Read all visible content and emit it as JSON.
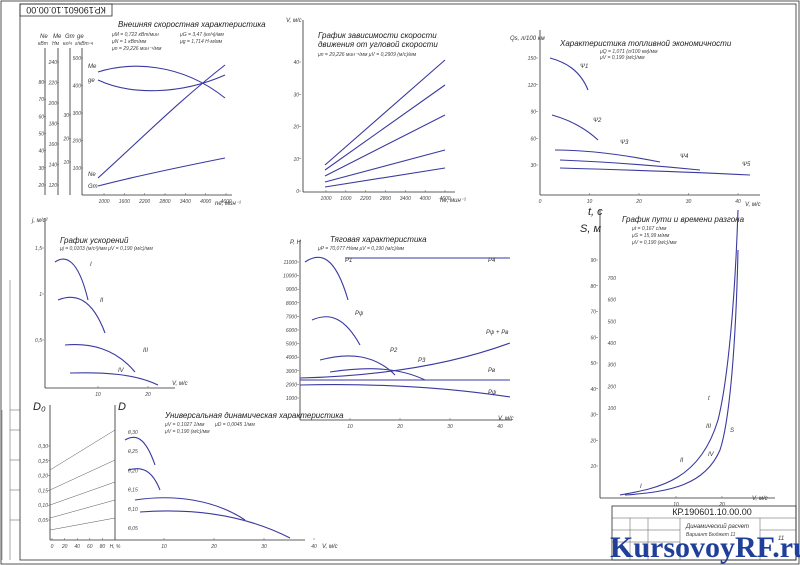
{
  "drawing_code": "КР.190601.10.00.00",
  "stamp": {
    "code": "КР.190601.10.00.00",
    "title_line1": "Динамический расчет",
    "title_line2": "Вариант Бюджет 11",
    "sheet": "11"
  },
  "watermark": {
    "text": "KursovoyRF.ru"
  },
  "chart_a": {
    "title": "Внешняя скоростная характеристика",
    "params": [
      "μМ = 0,722 кВт/мин",
      "μN = 1 кВт/мм",
      "μn = 29,226 мин⁻¹/мм",
      "μG = 3,47 (кг/ч)/мм",
      "μg = 1,714 H·м/мм"
    ],
    "axis_heads": [
      "Nе",
      "Mе",
      "Gт",
      "gе"
    ],
    "axis_units": [
      "кВт",
      "Нм",
      "кг/ч",
      "г/кВт·ч"
    ],
    "ticks_N": [
      "20",
      "30",
      "40",
      "50",
      "60",
      "70",
      "80"
    ],
    "ticks_M": [
      "120",
      "140",
      "160",
      "180",
      "200",
      "220",
      "240"
    ],
    "ticks_G": [
      "10",
      "20",
      "30"
    ],
    "ticks_g": [
      "100",
      "200",
      "300",
      "400",
      "500"
    ],
    "x_ticks": [
      "1000",
      "1600",
      "2200",
      "2800",
      "3400",
      "4000",
      "4600"
    ],
    "x_label": "nе, мин⁻¹",
    "curve_labels": [
      "Mе",
      "gе",
      "Nе",
      "Gт"
    ]
  },
  "chart_b": {
    "title_line1": "График зависимости скорости",
    "title_line2": "движения от угловой скорости",
    "params": "μn = 29,226 мин⁻¹/мм    μV = 0,2909 (м/с)/мм",
    "y_label": "V, м/с",
    "y_ticks": [
      "0",
      "10",
      "20",
      "30",
      "40"
    ],
    "x_ticks": [
      "1000",
      "1600",
      "2200",
      "2800",
      "3400",
      "4000",
      "4600"
    ],
    "x_label": "nе, мин⁻¹"
  },
  "chart_c": {
    "title": "Характеристика топливной экономичности",
    "params": [
      "μQ = 1,071 (л/100 км)/мм",
      "μV = 0,190 (м/с)/мм"
    ],
    "y_label": "Qs, л/100 км",
    "y_ticks": [
      "30",
      "60",
      "90",
      "120",
      "150"
    ],
    "x_ticks": [
      "0",
      "10",
      "20",
      "30",
      "40"
    ],
    "x_label": "V, м/с",
    "curve_labels": [
      "Ψ1",
      "Ψ2",
      "Ψ3",
      "Ψ4",
      "Ψ5"
    ]
  },
  "chart_d": {
    "title": "График ускорений",
    "params": "μj = 0,0103 (м/с²)/мм    μV = 0,190 (м/с)/мм",
    "y_label": "j, м/с²",
    "y_ticks": [
      "0,5",
      "1",
      "1,5"
    ],
    "x_ticks": [
      "10",
      "20"
    ],
    "x_label": "V, м/с",
    "curve_labels": [
      "I",
      "II",
      "III",
      "IV"
    ]
  },
  "chart_e": {
    "title": "Тяговая характеристика",
    "params": "μP = 70,077 Н/мм    μV = 0,190 (м/с)/мм",
    "y_label": "P, Н",
    "y_ticks": [
      "1000",
      "2000",
      "3000",
      "4000",
      "5000",
      "6000",
      "7000",
      "8000",
      "9000",
      "10000",
      "11000"
    ],
    "x_ticks": [
      "10",
      "20",
      "30",
      "40"
    ],
    "x_label": "V, м/с",
    "curve_labels": [
      "P1",
      "Pψ",
      "P2",
      "P3",
      "P4",
      "Pψ + Pв",
      "Pв",
      "Pψ"
    ]
  },
  "chart_f": {
    "title": "Универсальная динамическая характеристика",
    "params": [
      "μV = 0,1027 1/мм",
      "μD = 0,0045 1/мм",
      "μV = 0,190 (м/с)/мм"
    ],
    "left_label": "D₀",
    "right_label": "D",
    "left_ticks": [
      "0,05",
      "0,10",
      "0,15",
      "0,20",
      "0,25",
      "0,30"
    ],
    "right_ticks": [
      "0,05",
      "0,10",
      "0,15",
      "0,20",
      "0,25",
      "0,30"
    ],
    "load_ticks": [
      "0",
      "20",
      "40",
      "60",
      "80",
      "H, %"
    ],
    "x_ticks": [
      "10",
      "20",
      "30",
      "40"
    ],
    "x_label": "V, м/с"
  },
  "chart_g": {
    "title": "График пути и времени разгона",
    "params": [
      "μt = 0,167 с/мм",
      "μS = 15,99 м/мм",
      "μV = 0,190 (м/с)/мм"
    ],
    "t_label": "t, с",
    "s_label": "S, м",
    "y_ticks": [
      "10",
      "20",
      "30",
      "40",
      "50",
      "60",
      "70",
      "80",
      "90"
    ],
    "s_ticks": [
      "100",
      "200",
      "300",
      "400",
      "500",
      "600",
      "700"
    ],
    "x_ticks": [
      "10",
      "20"
    ],
    "x_label": "V, м/с",
    "curve_labels": [
      "t",
      "S",
      "I",
      "II",
      "III",
      "IV"
    ]
  }
}
